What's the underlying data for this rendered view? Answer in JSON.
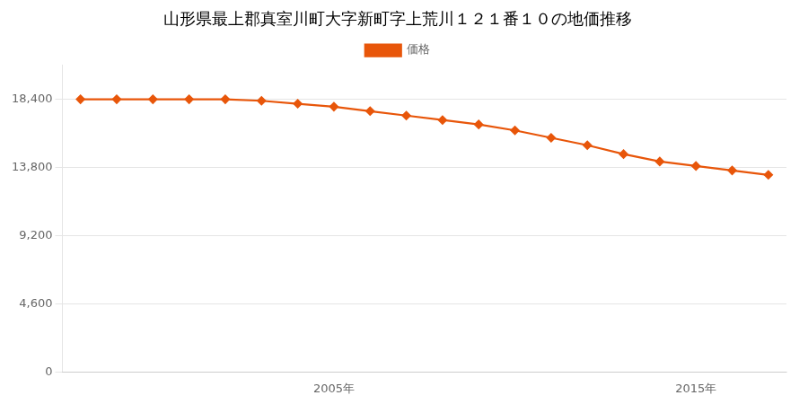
{
  "chart_data": {
    "type": "line",
    "title": "山形県最上郡真室川町大字新町字上荒川１２１番１０の地価推移",
    "x": [
      1998,
      1999,
      2000,
      2001,
      2002,
      2003,
      2004,
      2005,
      2006,
      2007,
      2008,
      2009,
      2010,
      2011,
      2012,
      2013,
      2014,
      2015,
      2016,
      2017
    ],
    "series": [
      {
        "name": "価格",
        "color": "#e8560a",
        "marker": "diamond",
        "values": [
          18400,
          18400,
          18400,
          18400,
          18400,
          18300,
          18100,
          17900,
          17600,
          17300,
          17000,
          16700,
          16300,
          15800,
          15300,
          14700,
          14200,
          13900,
          13600,
          13300
        ]
      }
    ],
    "xlim": [
      1997.5,
      2017.5
    ],
    "xticks": [
      {
        "value": 2005,
        "label": "2005年"
      },
      {
        "value": 2015,
        "label": "2015年"
      }
    ],
    "ylim": [
      0,
      20700
    ],
    "yticks": [
      0,
      {
        "value": 4600,
        "label": "4,600"
      },
      {
        "value": 9200,
        "label": "9,200"
      },
      {
        "value": 13800,
        "label": "13,800"
      },
      {
        "value": 18400,
        "label": "18,400"
      }
    ],
    "grid": "y",
    "legend": "top"
  }
}
